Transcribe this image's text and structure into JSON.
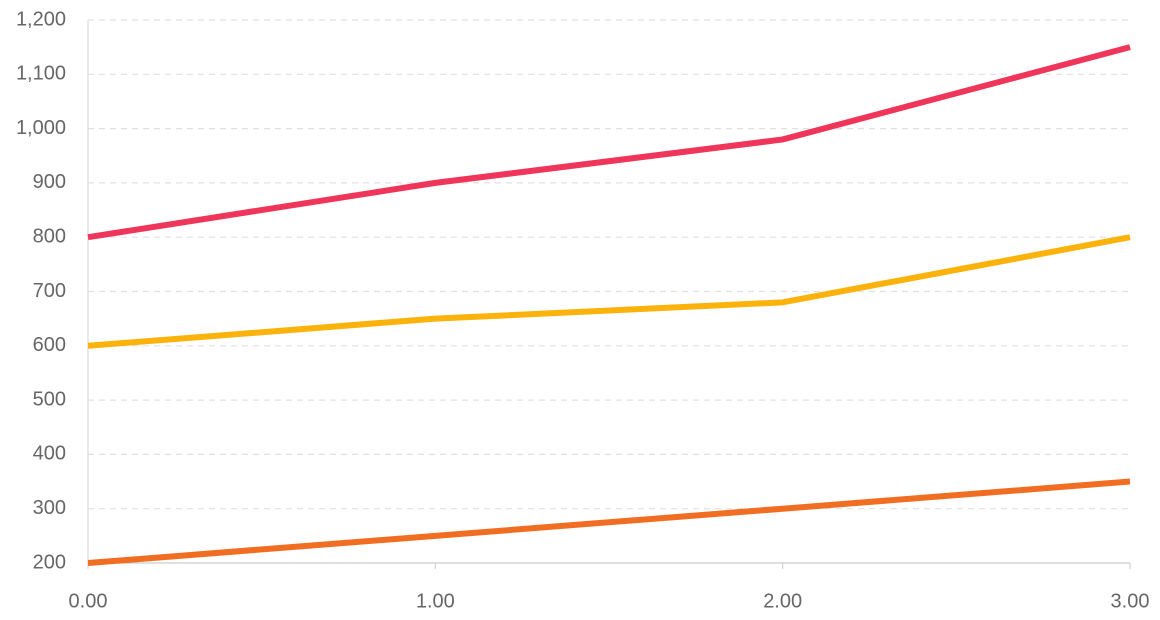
{
  "chart_data": {
    "type": "line",
    "x": [
      0,
      1,
      2,
      3
    ],
    "series": [
      {
        "color": "#f0355a",
        "values": [
          800,
          900,
          980,
          1150
        ]
      },
      {
        "color": "#fbb20b",
        "values": [
          600,
          650,
          680,
          800
        ]
      },
      {
        "color": "#f06d22",
        "values": [
          200,
          250,
          300,
          350
        ]
      }
    ],
    "xlim": [
      0,
      3
    ],
    "xticks": [
      {
        "value": 0,
        "label": "0.00"
      },
      {
        "value": 1,
        "label": "1.00"
      },
      {
        "value": 2,
        "label": "2.00"
      },
      {
        "value": 3,
        "label": "3.00"
      }
    ],
    "ylim": [
      200,
      1200
    ],
    "yticks": [
      200,
      300,
      400,
      500,
      600,
      700,
      800,
      900,
      {
        "value": 1000,
        "label": "1,000"
      },
      {
        "value": 1100,
        "label": "1,100"
      },
      {
        "value": 1200,
        "label": "1,200"
      }
    ],
    "grid": true
  }
}
